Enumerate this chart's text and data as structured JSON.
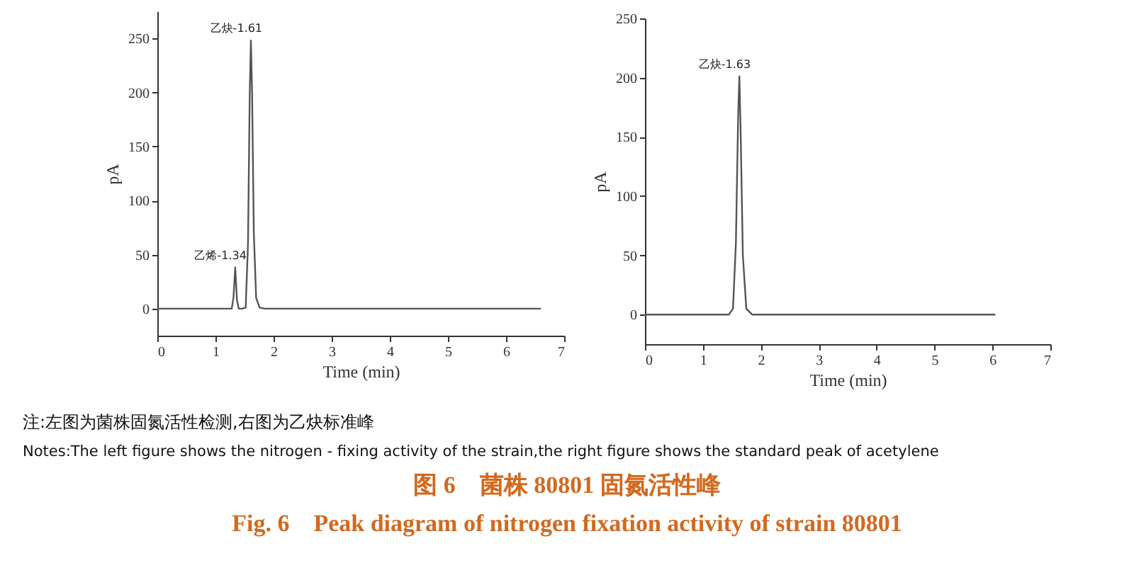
{
  "chart_data": [
    {
      "type": "line",
      "xlabel": "Time (min)",
      "ylabel": "pA",
      "xlim": [
        0,
        7
      ],
      "ylim": [
        -25,
        275
      ],
      "xticks": [
        0,
        1,
        2,
        3,
        4,
        5,
        6,
        7
      ],
      "yticks": [
        0,
        50,
        100,
        150,
        200,
        250
      ],
      "grid": false,
      "marker": "none",
      "x": [
        0,
        1.28,
        1.31,
        1.34,
        1.37,
        1.4,
        1.46,
        1.52,
        1.56,
        1.59,
        1.61,
        1.63,
        1.66,
        1.7,
        1.76,
        1.85,
        6.6
      ],
      "series": [
        {
          "color": "#555555",
          "values": [
            0,
            0,
            10,
            38,
            8,
            0,
            0,
            1,
            60,
            200,
            248,
            200,
            70,
            10,
            1,
            0,
            0
          ]
        }
      ],
      "annotations": [
        {
          "text": "乙烯-1.34",
          "x": 1.34,
          "y": 38
        },
        {
          "text": "乙炔-1.61",
          "x": 1.61,
          "y": 248
        },
        "注:左图为菌株固氮活性检测,右图为乙炔标准峰",
        "Notes:The left figure shows the nitrogen - fixing activity of the strain,the right figure shows the standard peak of acetylene",
        "图 6　菌株 80801 固氮活性峰",
        "Fig. 6　Peak diagram of nitrogen fixation activity of strain 80801"
      ]
    },
    {
      "type": "line",
      "xlabel": "Time (min)",
      "ylabel": "pA",
      "xlim": [
        0,
        7
      ],
      "ylim": [
        -25,
        250
      ],
      "xticks": [
        0,
        1,
        2,
        3,
        4,
        5,
        6,
        7
      ],
      "yticks": [
        0,
        50,
        100,
        150,
        200,
        250
      ],
      "grid": false,
      "marker": "none",
      "x": [
        0,
        1.45,
        1.52,
        1.57,
        1.61,
        1.63,
        1.65,
        1.69,
        1.75,
        1.85,
        6.05
      ],
      "series": [
        {
          "color": "#555555",
          "values": [
            0,
            0,
            5,
            60,
            170,
            201,
            160,
            50,
            5,
            0,
            0
          ]
        }
      ],
      "annotations": [
        {
          "text": "乙炔-1.63",
          "x": 1.63,
          "y": 201
        }
      ]
    }
  ]
}
